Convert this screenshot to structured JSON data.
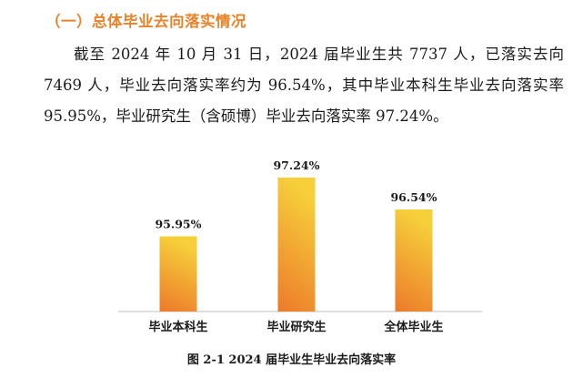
{
  "section": {
    "title": "（一）总体毕业去向落实情况"
  },
  "paragraph": {
    "text": "截至 2024 年 10 月 31 日，2024 届毕业生共 7737 人，已落实去向 7469 人，毕业去向落实率约为 96.54%，其中毕业本科生毕业去向落实率 95.95%，毕业研究生（含硕博）毕业去向落实率 97.24%。"
  },
  "chart_data": {
    "type": "bar",
    "categories": [
      "毕业本科生",
      "毕业研究生",
      "全体毕业生"
    ],
    "values": [
      95.95,
      97.24,
      96.54
    ],
    "value_labels": [
      "95.95%",
      "97.24%",
      "96.54%"
    ],
    "colors": {
      "bar_bottom": "#ec7a2a",
      "bar_top": "#f6cf3a",
      "axis": "#bfbfbf"
    }
  },
  "caption": {
    "text": "图 2-1 2024 届毕业生毕业去向落实率"
  }
}
